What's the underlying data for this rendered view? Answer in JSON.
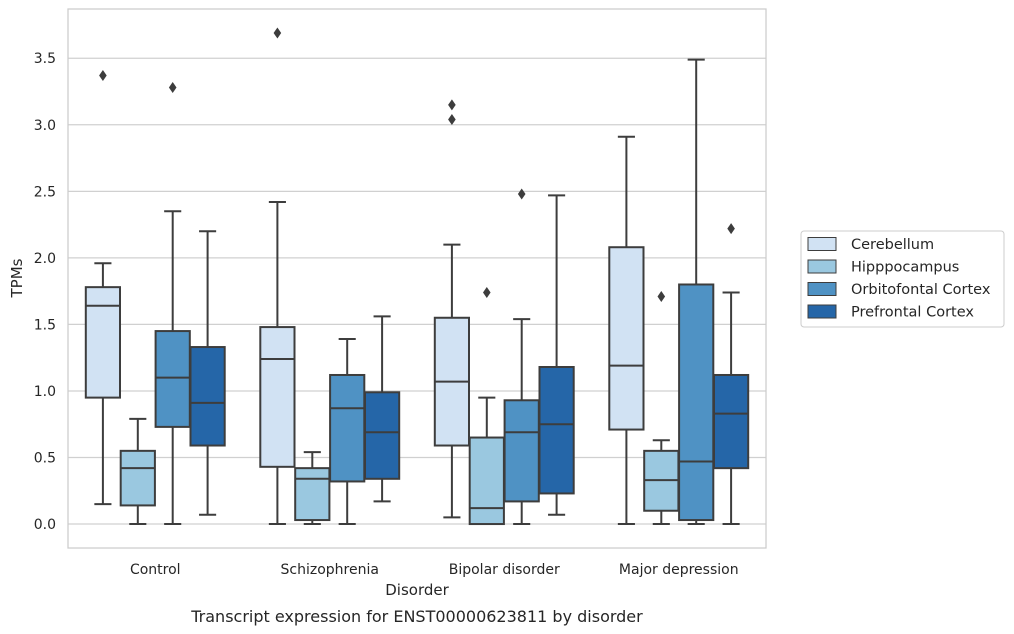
{
  "chart_data": {
    "type": "box",
    "title": "",
    "xlabel": "Disorder",
    "ylabel": "TPMs",
    "caption": "Transcript expression for ENST00000623811 by disorder",
    "ylim": [
      -0.18,
      3.87
    ],
    "yticks": [
      "0.0",
      "0.5",
      "1.0",
      "1.5",
      "2.0",
      "2.5",
      "3.0",
      "3.5"
    ],
    "ytick_values": [
      0.0,
      0.5,
      1.0,
      1.5,
      2.0,
      2.5,
      3.0,
      3.5
    ],
    "grid": "horizontal",
    "legend_position": "right",
    "categories": [
      "Control",
      "Schizophrenia",
      "Bipolar disorder",
      "Major depression"
    ],
    "series": [
      {
        "name": "Cerebellum",
        "color": "#d1e2f3",
        "boxes": [
          {
            "whislo": 0.15,
            "q1": 0.95,
            "med": 1.64,
            "q3": 1.78,
            "whishi": 1.96,
            "fliers": [
              3.37
            ]
          },
          {
            "whislo": 0.0,
            "q1": 0.43,
            "med": 1.24,
            "q3": 1.48,
            "whishi": 2.42,
            "fliers": [
              3.69
            ]
          },
          {
            "whislo": 0.05,
            "q1": 0.59,
            "med": 1.07,
            "q3": 1.55,
            "whishi": 2.1,
            "fliers": [
              3.04,
              3.15
            ]
          },
          {
            "whislo": 0.0,
            "q1": 0.71,
            "med": 1.19,
            "q3": 2.08,
            "whishi": 2.91,
            "fliers": []
          }
        ]
      },
      {
        "name": "Hipppocampus",
        "color": "#9ac8e0",
        "boxes": [
          {
            "whislo": 0.0,
            "q1": 0.14,
            "med": 0.42,
            "q3": 0.55,
            "whishi": 0.79,
            "fliers": []
          },
          {
            "whislo": 0.0,
            "q1": 0.03,
            "med": 0.34,
            "q3": 0.42,
            "whishi": 0.54,
            "fliers": []
          },
          {
            "whislo": 0.0,
            "q1": 0.0,
            "med": 0.12,
            "q3": 0.65,
            "whishi": 0.95,
            "fliers": [
              1.74
            ]
          },
          {
            "whislo": 0.0,
            "q1": 0.1,
            "med": 0.33,
            "q3": 0.55,
            "whishi": 0.63,
            "fliers": [
              1.71
            ]
          }
        ]
      },
      {
        "name": "Orbitofontal Cortex",
        "color": "#4f92c4",
        "boxes": [
          {
            "whislo": 0.0,
            "q1": 0.73,
            "med": 1.1,
            "q3": 1.45,
            "whishi": 2.35,
            "fliers": [
              3.28
            ]
          },
          {
            "whislo": 0.0,
            "q1": 0.32,
            "med": 0.87,
            "q3": 1.12,
            "whishi": 1.39,
            "fliers": []
          },
          {
            "whislo": 0.0,
            "q1": 0.17,
            "med": 0.69,
            "q3": 0.93,
            "whishi": 1.54,
            "fliers": [
              2.48
            ]
          },
          {
            "whislo": 0.0,
            "q1": 0.03,
            "med": 0.47,
            "q3": 1.8,
            "whishi": 3.49,
            "fliers": []
          }
        ]
      },
      {
        "name": "Prefrontal Cortex",
        "color": "#2566a8",
        "boxes": [
          {
            "whislo": 0.07,
            "q1": 0.59,
            "med": 0.91,
            "q3": 1.33,
            "whishi": 2.2,
            "fliers": []
          },
          {
            "whislo": 0.17,
            "q1": 0.34,
            "med": 0.69,
            "q3": 0.99,
            "whishi": 1.56,
            "fliers": []
          },
          {
            "whislo": 0.07,
            "q1": 0.23,
            "med": 0.75,
            "q3": 1.18,
            "whishi": 2.47,
            "fliers": []
          },
          {
            "whislo": 0.0,
            "q1": 0.42,
            "med": 0.83,
            "q3": 1.12,
            "whishi": 1.74,
            "fliers": [
              2.22
            ]
          }
        ]
      }
    ]
  }
}
